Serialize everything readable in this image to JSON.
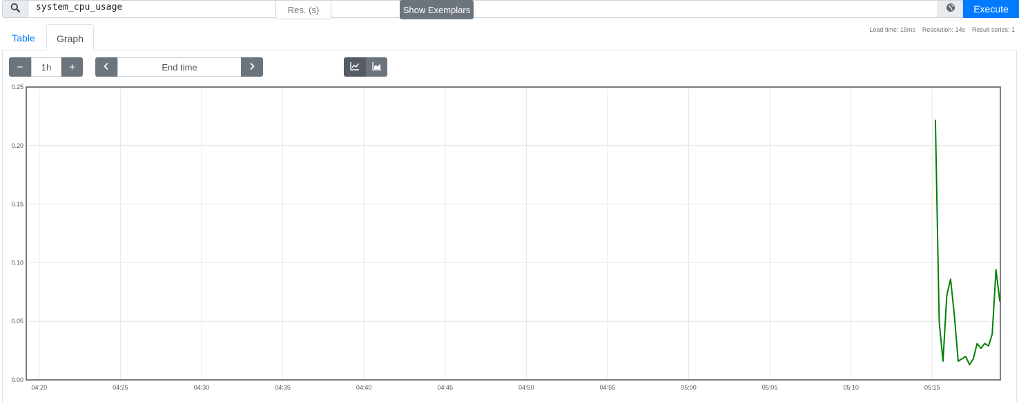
{
  "query": {
    "expression": "system_cpu_usage",
    "search_icon": "search-icon",
    "globe_icon": "globe-icon",
    "execute_label": "Execute"
  },
  "tabs": [
    {
      "label": "Table",
      "active": false
    },
    {
      "label": "Graph",
      "active": true
    }
  ],
  "stats": {
    "load_time": "Load time: 15ms",
    "resolution": "Resolution: 14s",
    "result_series": "Result series: 1"
  },
  "controls": {
    "range_minus": "−",
    "range_value": "1h",
    "range_plus": "+",
    "end_time_placeholder": "End time",
    "resolution_placeholder": "Res. (s)",
    "line_icon": "line-chart-icon",
    "stacked_icon": "area-chart-icon",
    "show_exemplars": "Show Exemplars"
  },
  "chart_data": {
    "type": "line",
    "x_ticks": [
      "04:20",
      "04:25",
      "04:30",
      "04:35",
      "04:40",
      "04:45",
      "04:50",
      "04:55",
      "05:00",
      "05:05",
      "05:10",
      "05:15"
    ],
    "y_ticks": [
      "0.00",
      "0.05",
      "0.10",
      "0.15",
      "0.20",
      "0.25"
    ],
    "ylim": [
      0,
      0.25
    ],
    "xlim": [
      "04:19:12",
      "05:19:12"
    ],
    "series": [
      {
        "color": "#008000",
        "x": [
          "05:15:12",
          "05:15:26",
          "05:15:40",
          "05:15:54",
          "05:16:08",
          "05:16:22",
          "05:16:36",
          "05:16:50",
          "05:17:04",
          "05:17:18",
          "05:17:32",
          "05:17:46",
          "05:18:00",
          "05:18:14",
          "05:18:28",
          "05:18:42",
          "05:18:56",
          "05:19:10"
        ],
        "values": [
          0.222,
          0.05,
          0.016,
          0.072,
          0.086,
          0.055,
          0.016,
          0.018,
          0.02,
          0.013,
          0.018,
          0.031,
          0.027,
          0.031,
          0.029,
          0.039,
          0.094,
          0.067
        ]
      }
    ],
    "grid": true
  }
}
